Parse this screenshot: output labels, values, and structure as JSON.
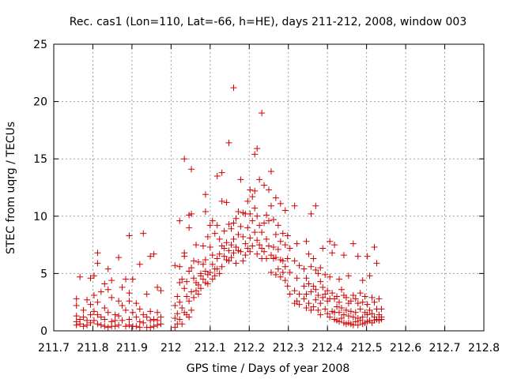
{
  "chart_data": {
    "type": "scatter",
    "title": "Rec. cas1 (Lon=110, Lat=-66, h=HE), days 211-212, 2008, window 003",
    "xlabel": "GPS time / Days of year 2008",
    "ylabel": "STEC from uqrg / TECUs",
    "xlim": [
      211.7,
      212.8
    ],
    "ylim": [
      0,
      25
    ],
    "xticks": [
      211.7,
      211.8,
      211.9,
      212,
      212.1,
      212.2,
      212.3,
      212.4,
      212.5,
      212.6,
      212.7,
      212.8
    ],
    "xtick_labels": [
      "211.7",
      "211.8",
      "211.9",
      "212",
      "212.1",
      "212.2",
      "212.3",
      "212.4",
      "212.5",
      "212.6",
      "212.7",
      "212.8"
    ],
    "yticks": [
      0,
      5,
      10,
      15,
      20,
      25
    ],
    "ytick_labels": [
      "0",
      "5",
      "10",
      "15",
      "20",
      "25"
    ],
    "grid": true,
    "marker": "plus",
    "color": "#d00000",
    "points": [
      [
        211.758,
        2.8
      ],
      [
        211.758,
        2.2
      ],
      [
        211.758,
        1.3
      ],
      [
        211.758,
        0.8
      ],
      [
        211.758,
        0.5
      ],
      [
        211.767,
        4.7
      ],
      [
        211.767,
        1.0
      ],
      [
        211.767,
        0.6
      ],
      [
        211.776,
        1.8
      ],
      [
        211.776,
        1.2
      ],
      [
        211.776,
        0.4
      ],
      [
        211.785,
        2.7
      ],
      [
        211.785,
        0.9
      ],
      [
        211.785,
        0.5
      ],
      [
        211.794,
        4.6
      ],
      [
        211.794,
        2.3
      ],
      [
        211.794,
        1.4
      ],
      [
        211.794,
        0.7
      ],
      [
        211.803,
        4.8
      ],
      [
        211.803,
        3.1
      ],
      [
        211.803,
        1.7
      ],
      [
        211.803,
        0.9
      ],
      [
        211.812,
        6.8
      ],
      [
        211.812,
        5.9
      ],
      [
        211.812,
        2.5
      ],
      [
        211.812,
        1.4
      ],
      [
        211.812,
        0.6
      ],
      [
        211.821,
        3.4
      ],
      [
        211.821,
        1.2
      ],
      [
        211.821,
        0.5
      ],
      [
        211.83,
        4.1
      ],
      [
        211.83,
        2.0
      ],
      [
        211.83,
        1.0
      ],
      [
        211.83,
        0.4
      ],
      [
        211.839,
        5.4
      ],
      [
        211.839,
        3.6
      ],
      [
        211.839,
        1.6
      ],
      [
        211.839,
        0.3
      ],
      [
        211.848,
        4.4
      ],
      [
        211.848,
        2.9
      ],
      [
        211.848,
        0.8
      ],
      [
        211.848,
        0.4
      ],
      [
        211.857,
        1.4
      ],
      [
        211.857,
        0.9
      ],
      [
        211.857,
        0.4
      ],
      [
        211.866,
        6.4
      ],
      [
        211.866,
        2.6
      ],
      [
        211.866,
        1.3
      ],
      [
        211.866,
        0.5
      ],
      [
        211.875,
        3.8
      ],
      [
        211.875,
        2.2
      ],
      [
        211.875,
        0.9
      ],
      [
        211.884,
        4.5
      ],
      [
        211.884,
        1.8
      ],
      [
        211.884,
        0.4
      ],
      [
        211.893,
        8.3
      ],
      [
        211.893,
        3.3
      ],
      [
        211.893,
        2.6
      ],
      [
        211.893,
        1.0
      ],
      [
        211.893,
        0.5
      ],
      [
        211.902,
        4.5
      ],
      [
        211.902,
        1.6
      ],
      [
        211.902,
        0.4
      ],
      [
        211.911,
        2.4
      ],
      [
        211.911,
        1.2
      ],
      [
        211.911,
        0.4
      ],
      [
        211.92,
        5.8
      ],
      [
        211.92,
        1.9
      ],
      [
        211.92,
        0.8
      ],
      [
        211.92,
        0.3
      ],
      [
        211.929,
        8.5
      ],
      [
        211.929,
        1.4
      ],
      [
        211.929,
        0.7
      ],
      [
        211.938,
        3.2
      ],
      [
        211.938,
        1.2
      ],
      [
        211.938,
        0.3
      ],
      [
        211.947,
        6.5
      ],
      [
        211.947,
        1.7
      ],
      [
        211.947,
        0.9
      ],
      [
        211.947,
        0.3
      ],
      [
        211.956,
        6.7
      ],
      [
        211.956,
        1.0
      ],
      [
        211.956,
        0.4
      ],
      [
        211.965,
        3.8
      ],
      [
        211.965,
        1.6
      ],
      [
        211.965,
        0.9
      ],
      [
        211.965,
        0.5
      ],
      [
        211.974,
        3.5
      ],
      [
        211.974,
        1.2
      ],
      [
        211.974,
        0.6
      ],
      [
        212.01,
        5.7
      ],
      [
        212.01,
        2.2
      ],
      [
        212.01,
        1.1
      ],
      [
        212.01,
        0.3
      ],
      [
        212.016,
        3.0
      ],
      [
        212.016,
        1.5
      ],
      [
        212.016,
        0.6
      ],
      [
        212.022,
        9.6
      ],
      [
        212.022,
        5.6
      ],
      [
        212.022,
        4.2
      ],
      [
        212.022,
        2.5
      ],
      [
        212.022,
        1.0
      ],
      [
        212.028,
        4.5
      ],
      [
        212.028,
        2.0
      ],
      [
        212.028,
        0.6
      ],
      [
        212.034,
        15.0
      ],
      [
        212.034,
        6.8
      ],
      [
        212.034,
        6.5
      ],
      [
        212.034,
        3.7
      ],
      [
        212.034,
        1.6
      ],
      [
        212.04,
        4.3
      ],
      [
        212.04,
        3.0
      ],
      [
        212.04,
        1.4
      ],
      [
        212.046,
        9.0
      ],
      [
        212.046,
        10.1
      ],
      [
        212.046,
        5.2
      ],
      [
        212.046,
        2.6
      ],
      [
        212.046,
        1.2
      ],
      [
        212.052,
        14.1
      ],
      [
        212.052,
        10.2
      ],
      [
        212.052,
        5.5
      ],
      [
        212.052,
        3.4
      ],
      [
        212.052,
        1.8
      ],
      [
        212.058,
        6.1
      ],
      [
        212.058,
        4.6
      ],
      [
        212.058,
        2.9
      ],
      [
        212.064,
        7.5
      ],
      [
        212.064,
        4.2
      ],
      [
        212.064,
        3.5
      ],
      [
        212.07,
        6.0
      ],
      [
        212.07,
        4.0
      ],
      [
        212.07,
        3.2
      ],
      [
        212.076,
        5.0
      ],
      [
        212.076,
        4.8
      ],
      [
        212.076,
        3.7
      ],
      [
        212.082,
        7.4
      ],
      [
        212.082,
        5.8
      ],
      [
        212.082,
        4.5
      ],
      [
        212.088,
        11.9
      ],
      [
        212.088,
        10.4
      ],
      [
        212.088,
        6.2
      ],
      [
        212.088,
        5.2
      ],
      [
        212.088,
        4.2
      ],
      [
        212.094,
        8.2
      ],
      [
        212.094,
        4.9
      ],
      [
        212.094,
        4.1
      ],
      [
        212.1,
        9.2
      ],
      [
        212.1,
        7.3
      ],
      [
        212.1,
        5.1
      ],
      [
        212.106,
        9.6
      ],
      [
        212.106,
        6.6
      ],
      [
        212.106,
        5.8
      ],
      [
        212.106,
        4.5
      ],
      [
        212.112,
        8.5
      ],
      [
        212.112,
        5.4
      ],
      [
        212.112,
        4.8
      ],
      [
        212.118,
        13.5
      ],
      [
        212.118,
        9.2
      ],
      [
        212.118,
        6.3
      ],
      [
        212.118,
        5.4
      ],
      [
        212.124,
        8.0
      ],
      [
        212.124,
        6.7
      ],
      [
        212.124,
        5.0
      ],
      [
        212.13,
        13.8
      ],
      [
        212.13,
        11.3
      ],
      [
        212.13,
        7.4
      ],
      [
        212.13,
        5.6
      ],
      [
        212.136,
        8.7
      ],
      [
        212.136,
        7.2
      ],
      [
        212.136,
        6.5
      ],
      [
        212.142,
        11.2
      ],
      [
        212.142,
        7.7
      ],
      [
        212.142,
        6.2
      ],
      [
        212.148,
        16.4
      ],
      [
        212.148,
        9.3
      ],
      [
        212.148,
        7.0
      ],
      [
        212.148,
        6.1
      ],
      [
        212.154,
        8.9
      ],
      [
        212.154,
        7.5
      ],
      [
        212.154,
        6.4
      ],
      [
        212.16,
        21.2
      ],
      [
        212.16,
        9.4
      ],
      [
        212.16,
        8.0
      ],
      [
        212.16,
        6.8
      ],
      [
        212.166,
        9.8
      ],
      [
        212.166,
        7.3
      ],
      [
        212.166,
        5.9
      ],
      [
        212.172,
        10.4
      ],
      [
        212.172,
        8.4
      ],
      [
        212.172,
        7.0
      ],
      [
        212.178,
        13.2
      ],
      [
        212.178,
        9.1
      ],
      [
        212.178,
        6.9
      ],
      [
        212.184,
        10.3
      ],
      [
        212.184,
        8.2
      ],
      [
        212.184,
        6.1
      ],
      [
        212.19,
        10.2
      ],
      [
        212.19,
        7.6
      ],
      [
        212.19,
        6.6
      ],
      [
        212.196,
        11.3
      ],
      [
        212.196,
        9.0
      ],
      [
        212.196,
        7.2
      ],
      [
        212.202,
        12.3
      ],
      [
        212.202,
        10.2
      ],
      [
        212.202,
        8.1
      ],
      [
        212.202,
        6.9
      ],
      [
        212.208,
        11.7
      ],
      [
        212.208,
        9.6
      ],
      [
        212.208,
        7.4
      ],
      [
        212.214,
        15.4
      ],
      [
        212.214,
        12.2
      ],
      [
        212.214,
        10.7
      ],
      [
        212.214,
        8.6
      ],
      [
        212.22,
        15.9
      ],
      [
        212.22,
        10.0
      ],
      [
        212.22,
        7.9
      ],
      [
        212.22,
        6.7
      ],
      [
        212.226,
        13.2
      ],
      [
        212.226,
        9.2
      ],
      [
        212.226,
        7.5
      ],
      [
        212.232,
        19.0
      ],
      [
        212.232,
        8.6
      ],
      [
        212.232,
        7.2
      ],
      [
        212.232,
        6.3
      ],
      [
        212.238,
        12.7
      ],
      [
        212.238,
        9.4
      ],
      [
        212.238,
        6.9
      ],
      [
        212.244,
        10.1
      ],
      [
        212.244,
        8.0
      ],
      [
        212.244,
        6.3
      ],
      [
        212.25,
        12.3
      ],
      [
        212.25,
        9.6
      ],
      [
        212.25,
        7.4
      ],
      [
        212.256,
        13.9
      ],
      [
        212.256,
        10.9
      ],
      [
        212.256,
        6.6
      ],
      [
        212.256,
        5.1
      ],
      [
        212.262,
        9.7
      ],
      [
        212.262,
        7.3
      ],
      [
        212.262,
        6.3
      ],
      [
        212.268,
        11.6
      ],
      [
        212.268,
        8.4
      ],
      [
        212.268,
        6.4
      ],
      [
        212.268,
        4.9
      ],
      [
        212.274,
        9.2
      ],
      [
        212.274,
        7.1
      ],
      [
        212.274,
        5.4
      ],
      [
        212.28,
        11.1
      ],
      [
        212.28,
        7.8
      ],
      [
        212.28,
        6.2
      ],
      [
        212.28,
        4.7
      ],
      [
        212.286,
        8.5
      ],
      [
        212.286,
        6.1
      ],
      [
        212.286,
        5.1
      ],
      [
        212.292,
        10.5
      ],
      [
        212.292,
        7.5
      ],
      [
        212.292,
        5.6
      ],
      [
        212.292,
        4.4
      ],
      [
        212.298,
        8.3
      ],
      [
        212.298,
        6.3
      ],
      [
        212.298,
        3.9
      ],
      [
        212.304,
        7.2
      ],
      [
        212.304,
        5.1
      ],
      [
        212.304,
        3.2
      ],
      [
        212.316,
        10.9
      ],
      [
        212.316,
        6.1
      ],
      [
        212.316,
        3.5
      ],
      [
        212.316,
        2.4
      ],
      [
        212.322,
        7.6
      ],
      [
        212.322,
        4.6
      ],
      [
        212.322,
        2.6
      ],
      [
        212.328,
        5.7
      ],
      [
        212.328,
        3.2
      ],
      [
        212.328,
        2.3
      ],
      [
        212.34,
        5.4
      ],
      [
        212.34,
        3.9
      ],
      [
        212.34,
        2.8
      ],
      [
        212.346,
        7.8
      ],
      [
        212.346,
        4.6
      ],
      [
        212.346,
        3.2
      ],
      [
        212.346,
        2.0
      ],
      [
        212.352,
        6.7
      ],
      [
        212.352,
        4.1
      ],
      [
        212.352,
        2.4
      ],
      [
        212.358,
        10.2
      ],
      [
        212.358,
        5.6
      ],
      [
        212.358,
        3.4
      ],
      [
        212.358,
        1.8
      ],
      [
        212.364,
        6.3
      ],
      [
        212.364,
        3.9
      ],
      [
        212.364,
        2.1
      ],
      [
        212.37,
        10.9
      ],
      [
        212.37,
        5.3
      ],
      [
        212.37,
        3.6
      ],
      [
        212.37,
        2.7
      ],
      [
        212.376,
        5.0
      ],
      [
        212.376,
        3.1
      ],
      [
        212.376,
        1.8
      ],
      [
        212.382,
        5.5
      ],
      [
        212.382,
        4.3
      ],
      [
        212.382,
        2.4
      ],
      [
        212.382,
        1.4
      ],
      [
        212.388,
        7.2
      ],
      [
        212.388,
        3.8
      ],
      [
        212.388,
        2.9
      ],
      [
        212.394,
        4.9
      ],
      [
        212.394,
        3.2
      ],
      [
        212.394,
        1.9
      ],
      [
        212.4,
        3.5
      ],
      [
        212.4,
        2.6
      ],
      [
        212.4,
        1.5
      ],
      [
        212.406,
        7.8
      ],
      [
        212.406,
        4.7
      ],
      [
        212.406,
        2.8
      ],
      [
        212.406,
        1.2
      ],
      [
        212.412,
        6.8
      ],
      [
        212.412,
        3.3
      ],
      [
        212.412,
        1.7
      ],
      [
        212.418,
        7.5
      ],
      [
        212.418,
        2.8
      ],
      [
        212.418,
        1.6
      ],
      [
        212.418,
        1.0
      ],
      [
        212.424,
        3.0
      ],
      [
        212.424,
        2.1
      ],
      [
        212.424,
        0.9
      ],
      [
        212.43,
        4.5
      ],
      [
        212.43,
        2.5
      ],
      [
        212.43,
        1.6
      ],
      [
        212.43,
        0.8
      ],
      [
        212.436,
        3.6
      ],
      [
        212.436,
        2.0
      ],
      [
        212.436,
        1.1
      ],
      [
        212.442,
        6.6
      ],
      [
        212.442,
        3.1
      ],
      [
        212.442,
        1.4
      ],
      [
        212.442,
        0.7
      ],
      [
        212.448,
        2.9
      ],
      [
        212.448,
        1.8
      ],
      [
        212.448,
        0.6
      ],
      [
        212.454,
        4.8
      ],
      [
        212.454,
        2.4
      ],
      [
        212.454,
        1.3
      ],
      [
        212.454,
        0.7
      ],
      [
        212.46,
        2.6
      ],
      [
        212.46,
        1.7
      ],
      [
        212.46,
        0.6
      ],
      [
        212.466,
        7.6
      ],
      [
        212.466,
        3.1
      ],
      [
        212.466,
        1.2
      ],
      [
        212.466,
        0.5
      ],
      [
        212.472,
        2.8
      ],
      [
        212.472,
        1.6
      ],
      [
        212.472,
        0.8
      ],
      [
        212.478,
        6.5
      ],
      [
        212.478,
        2.4
      ],
      [
        212.478,
        1.1
      ],
      [
        212.478,
        0.5
      ],
      [
        212.484,
        3.3
      ],
      [
        212.484,
        1.9
      ],
      [
        212.484,
        0.9
      ],
      [
        212.49,
        4.4
      ],
      [
        212.49,
        2.5
      ],
      [
        212.49,
        1.2
      ],
      [
        212.49,
        0.6
      ],
      [
        212.496,
        3.0
      ],
      [
        212.496,
        1.6
      ],
      [
        212.496,
        0.7
      ],
      [
        212.502,
        6.5
      ],
      [
        212.502,
        2.3
      ],
      [
        212.502,
        1.4
      ],
      [
        212.502,
        0.8
      ],
      [
        212.508,
        4.8
      ],
      [
        212.508,
        1.8
      ],
      [
        212.508,
        0.9
      ],
      [
        212.514,
        2.9
      ],
      [
        212.514,
        1.5
      ],
      [
        212.514,
        0.7
      ],
      [
        212.52,
        7.3
      ],
      [
        212.52,
        2.5
      ],
      [
        212.52,
        1.2
      ],
      [
        212.52,
        0.9
      ],
      [
        212.526,
        5.9
      ],
      [
        212.526,
        1.9
      ],
      [
        212.526,
        1.0
      ],
      [
        212.532,
        2.8
      ],
      [
        212.532,
        1.4
      ],
      [
        212.532,
        0.9
      ],
      [
        212.538,
        1.9
      ],
      [
        212.538,
        1.2
      ],
      [
        212.538,
        1.0
      ]
    ]
  }
}
